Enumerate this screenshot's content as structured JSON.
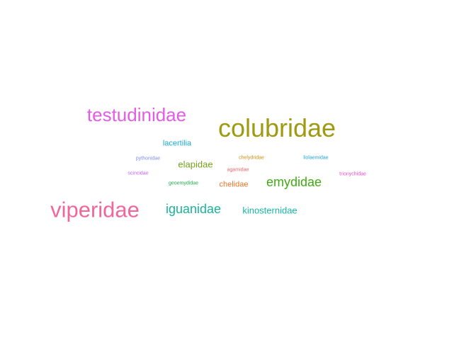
{
  "word_cloud": {
    "words": [
      {
        "key": "colubridae",
        "text": "colubridae",
        "color": "#9e9a12"
      },
      {
        "key": "viperidae",
        "text": "viperidae",
        "color": "#f0679a"
      },
      {
        "key": "testudinidae",
        "text": "testudinidae",
        "color": "#e25ce6"
      },
      {
        "key": "iguanidae",
        "text": "iguanidae",
        "color": "#19b596"
      },
      {
        "key": "emydidae",
        "text": "emydidae",
        "color": "#3fab12"
      },
      {
        "key": "elapidae",
        "text": "elapidae",
        "color": "#76a11c"
      },
      {
        "key": "kinosternidae",
        "text": "kinosternidae",
        "color": "#17b5a6"
      },
      {
        "key": "lacertilia",
        "text": "lacertilia",
        "color": "#1aa8d1"
      },
      {
        "key": "chelidae",
        "text": "chelidae",
        "color": "#e0772a"
      },
      {
        "key": "pythonidae",
        "text": "pythonidae",
        "color": "#7f8cf3"
      },
      {
        "key": "chelydridae",
        "text": "chelydridae",
        "color": "#c99411"
      },
      {
        "key": "liolaemidae",
        "text": "liolaemidae",
        "color": "#23a7dc"
      },
      {
        "key": "agamidae",
        "text": "agamidae",
        "color": "#f0686a"
      },
      {
        "key": "scincidae",
        "text": "scincidae",
        "color": "#c162f0"
      },
      {
        "key": "trionychidae",
        "text": "trionychidae",
        "color": "#e84fc8"
      },
      {
        "key": "geoemydidae",
        "text": "geoemydidae",
        "color": "#22ad4f"
      }
    ]
  }
}
